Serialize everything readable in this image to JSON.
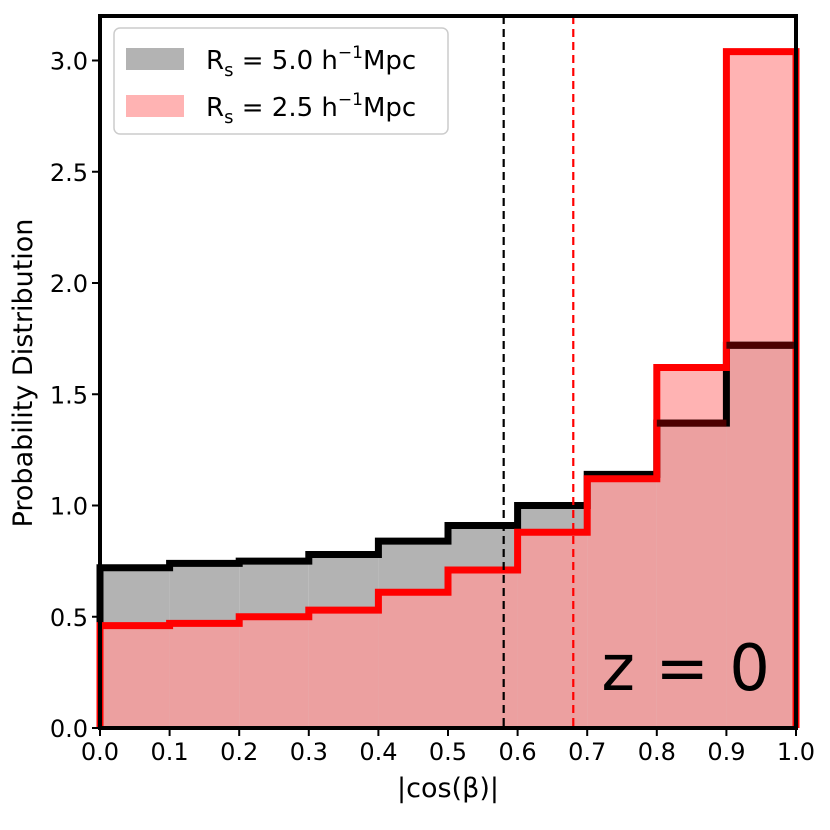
{
  "chart_data": {
    "type": "histogram",
    "xlabel": "|cos(β)|",
    "ylabel": "Probability Distribution",
    "xlim": [
      0.0,
      1.0
    ],
    "ylim": [
      0.0,
      3.2
    ],
    "xticks": [
      "0.0",
      "0.1",
      "0.2",
      "0.3",
      "0.4",
      "0.5",
      "0.6",
      "0.7",
      "0.8",
      "0.9",
      "1.0"
    ],
    "yticks": [
      "0.0",
      "0.5",
      "1.0",
      "1.5",
      "2.0",
      "2.5",
      "3.0"
    ],
    "bin_edges": [
      0.0,
      0.1,
      0.2,
      0.3,
      0.4,
      0.5,
      0.6,
      0.7,
      0.8,
      0.9,
      1.0
    ],
    "series": [
      {
        "legend_main": "R",
        "legend_sub": "s",
        "legend_value": " = 5.0 h",
        "legend_sup": "−1",
        "legend_unit": "Mpc",
        "fill_color": "#b3b3b3",
        "line_color": "#000000",
        "values": [
          0.72,
          0.74,
          0.75,
          0.78,
          0.84,
          0.91,
          1.0,
          1.14,
          1.37,
          1.72
        ],
        "mean": 0.58
      },
      {
        "legend_main": "R",
        "legend_sub": "s",
        "legend_value": " = 2.5 h",
        "legend_sup": "−1",
        "legend_unit": "Mpc",
        "fill_color": "#ff9999",
        "line_color": "#ff0000",
        "values": [
          0.46,
          0.47,
          0.5,
          0.53,
          0.61,
          0.71,
          0.88,
          1.12,
          1.62,
          3.04
        ],
        "mean": 0.68
      }
    ],
    "annotation": "z = 0",
    "legend_position": "upper-left"
  }
}
